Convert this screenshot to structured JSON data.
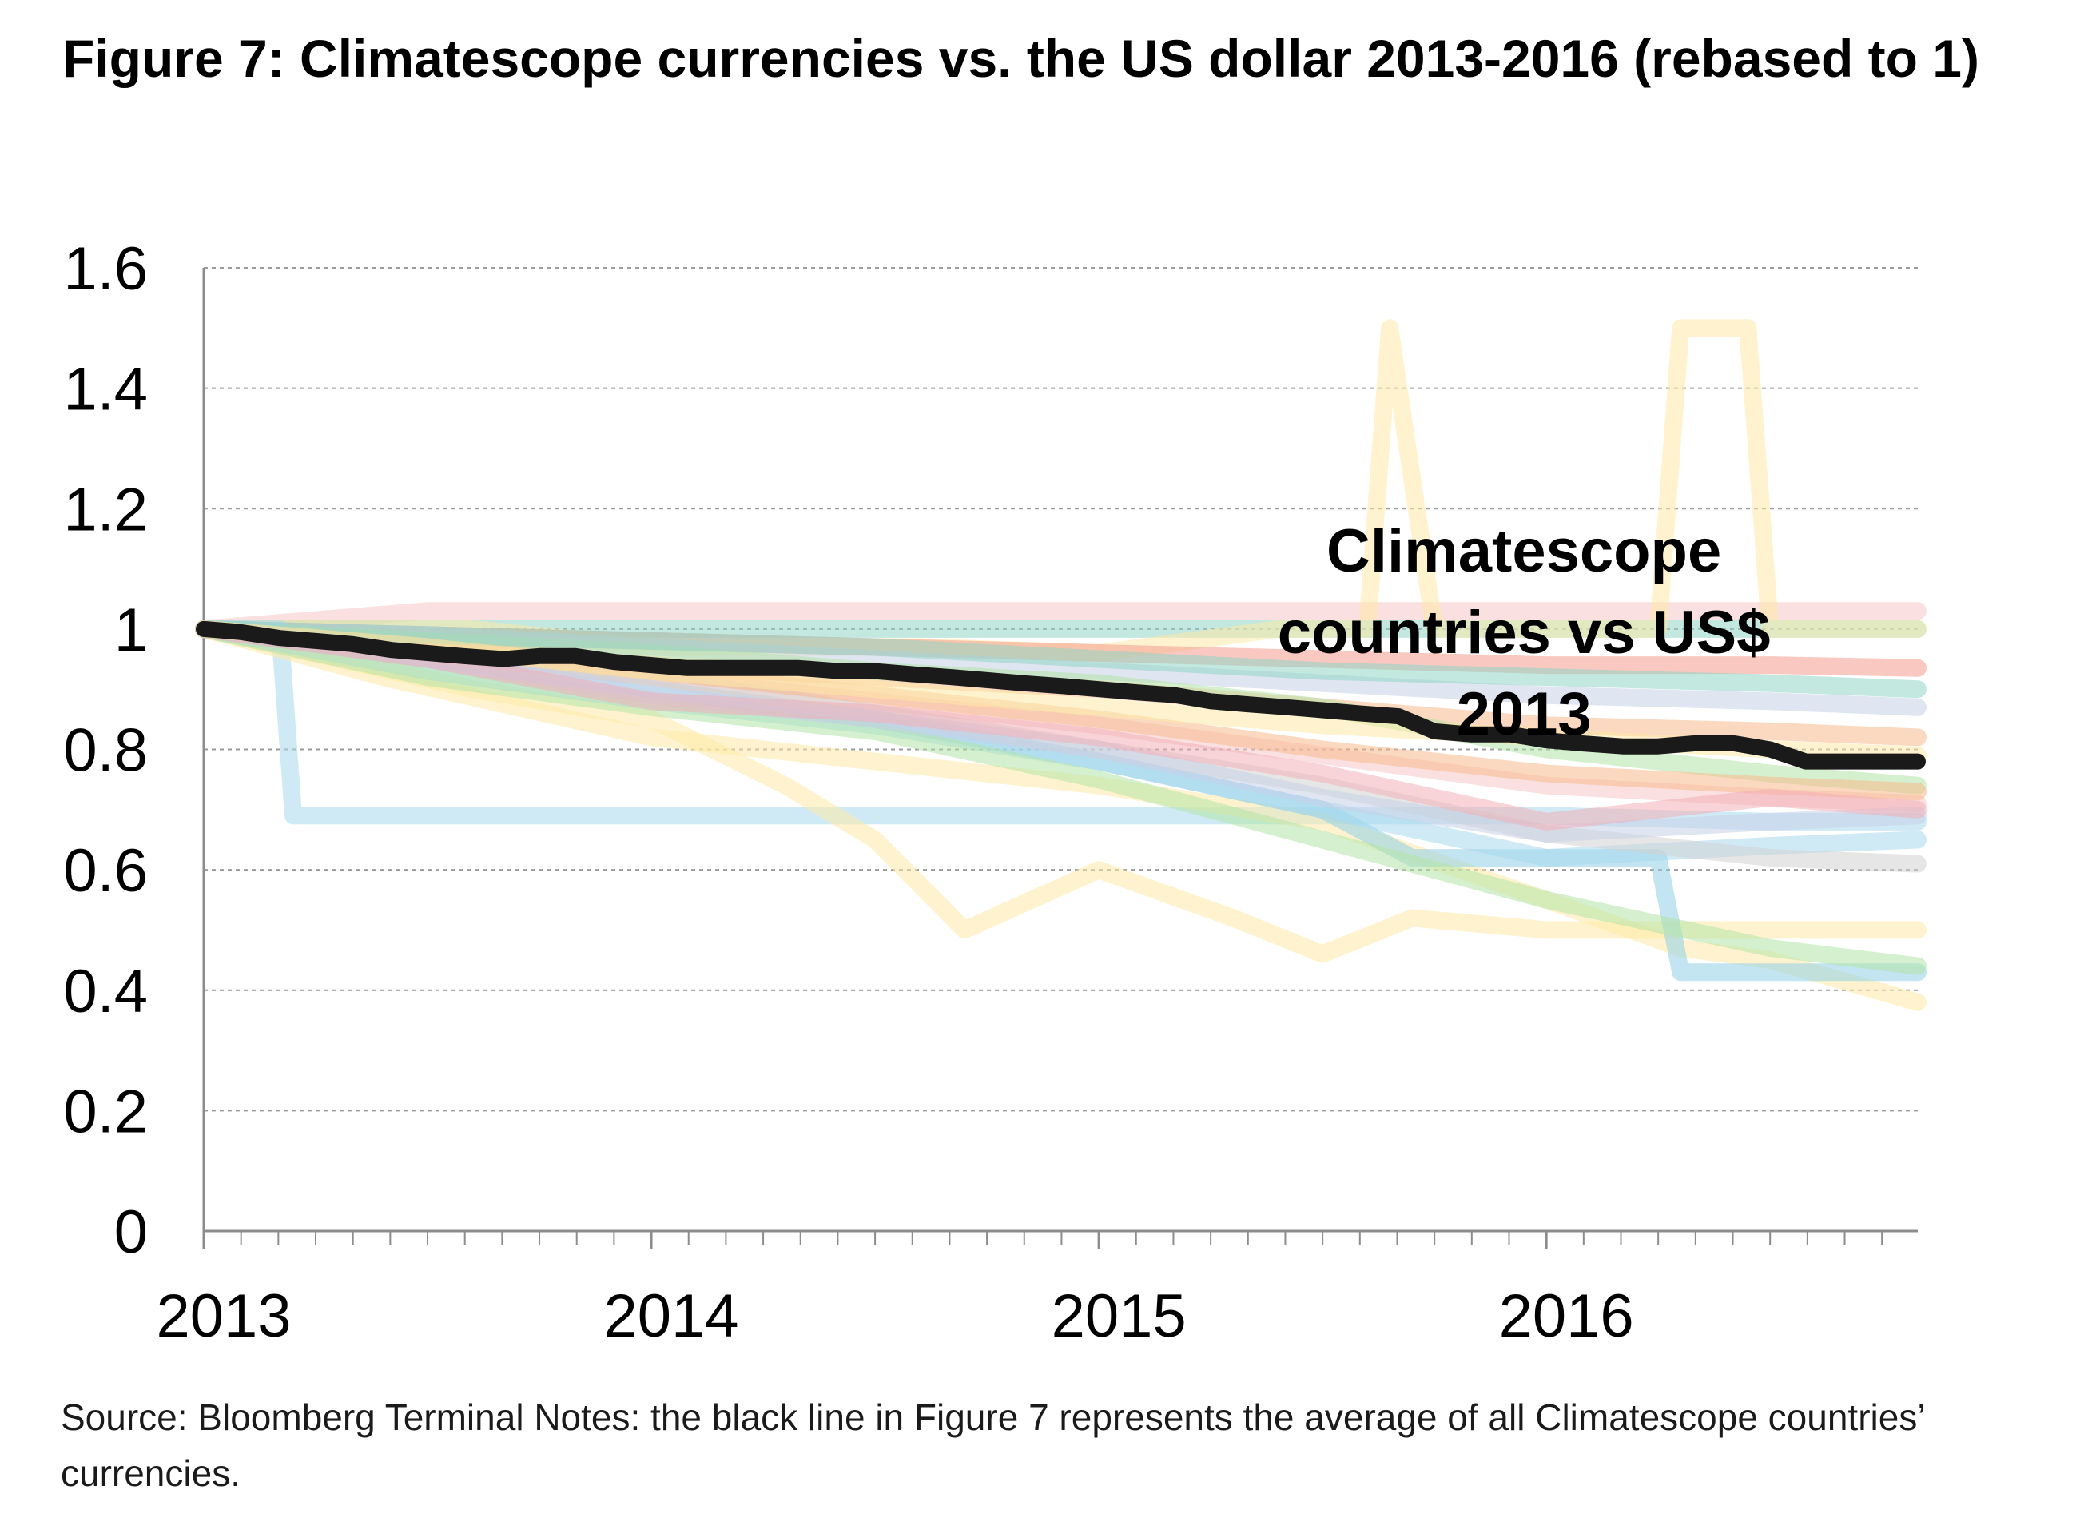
{
  "title": "Figure 7: Climatescope currencies vs. the US dollar 2013-2016 (rebased to 1)",
  "footnote": "Source: Bloomberg Terminal  Notes: the black line in Figure 7 represents the average of all Climatescope countries’ currencies.",
  "chart_data": {
    "type": "line",
    "title": "Figure 7: Climatescope currencies vs. the US dollar 2013-2016 (rebased to 1)",
    "xlabel": "",
    "ylabel": "",
    "xlim": [
      2013.0,
      2016.83
    ],
    "ylim": [
      0,
      1.6
    ],
    "y_ticks": [
      {
        "value": 0,
        "label": "0"
      },
      {
        "value": 0.2,
        "label": "0.2"
      },
      {
        "value": 0.4,
        "label": "0.4"
      },
      {
        "value": 0.6,
        "label": "0.6"
      },
      {
        "value": 0.8,
        "label": "0.8"
      },
      {
        "value": 1.0,
        "label": "1"
      },
      {
        "value": 1.2,
        "label": "1.2"
      },
      {
        "value": 1.4,
        "label": "1.4"
      },
      {
        "value": 1.6,
        "label": "1.6"
      }
    ],
    "x_ticks": [
      {
        "value": 2013,
        "label": "2013"
      },
      {
        "value": 2014,
        "label": "2014"
      },
      {
        "value": 2015,
        "label": "2015"
      },
      {
        "value": 2016,
        "label": "2016"
      }
    ],
    "grid": "horizontal dashed",
    "annotation": {
      "lines": [
        "Climatescope",
        "countries vs US$",
        "2013"
      ],
      "x": 2015.95,
      "y": 1.13
    },
    "average_series": {
      "color": "#1a1a1a",
      "x": [
        2013.0,
        2013.08,
        2013.17,
        2013.25,
        2013.33,
        2013.42,
        2013.5,
        2013.58,
        2013.67,
        2013.75,
        2013.83,
        2013.92,
        2014.0,
        2014.08,
        2014.17,
        2014.25,
        2014.33,
        2014.42,
        2014.5,
        2014.58,
        2014.67,
        2014.75,
        2014.83,
        2014.92,
        2015.0,
        2015.08,
        2015.17,
        2015.25,
        2015.33,
        2015.42,
        2015.5,
        2015.58,
        2015.67,
        2015.75,
        2015.83,
        2015.92,
        2016.0,
        2016.08,
        2016.17,
        2016.25,
        2016.33,
        2016.42,
        2016.5,
        2016.58,
        2016.67,
        2016.75,
        2016.83
      ],
      "y": [
        1.0,
        0.995,
        0.985,
        0.98,
        0.975,
        0.965,
        0.96,
        0.955,
        0.95,
        0.955,
        0.955,
        0.945,
        0.94,
        0.935,
        0.935,
        0.935,
        0.935,
        0.93,
        0.93,
        0.925,
        0.92,
        0.915,
        0.91,
        0.905,
        0.9,
        0.895,
        0.89,
        0.88,
        0.875,
        0.87,
        0.865,
        0.86,
        0.855,
        0.83,
        0.825,
        0.825,
        0.815,
        0.81,
        0.805,
        0.805,
        0.81,
        0.81,
        0.8,
        0.78,
        0.78,
        0.78,
        0.78
      ]
    },
    "series": [
      {
        "color": "#f6c6c6",
        "x": [
          2013.0,
          2013.5,
          2014.0,
          2014.5,
          2015.0,
          2015.5,
          2016.0,
          2016.5,
          2016.83
        ],
        "y": [
          1.0,
          1.03,
          1.03,
          1.03,
          1.03,
          1.03,
          1.03,
          1.03,
          1.03
        ]
      },
      {
        "color": "#8fd6c4",
        "x": [
          2013.0,
          2013.5,
          2014.0,
          2014.5,
          2015.0,
          2015.5,
          2016.0,
          2016.5,
          2016.83
        ],
        "y": [
          1.0,
          1.0,
          1.0,
          1.0,
          1.0,
          1.0,
          1.0,
          1.0,
          1.0
        ]
      },
      {
        "color": "#fde9a6",
        "x": [
          2013.0,
          2013.6,
          2014.0,
          2014.6,
          2015.0,
          2015.4,
          2015.6,
          2015.65,
          2015.75,
          2016.0,
          2016.25,
          2016.3,
          2016.45,
          2016.5,
          2016.83
        ],
        "y": [
          1.0,
          1.0,
          0.97,
          0.97,
          0.96,
          1.0,
          1.0,
          1.5,
          1.0,
          1.0,
          1.0,
          1.5,
          1.5,
          1.0,
          1.0
        ]
      },
      {
        "color": "#f29a8e",
        "x": [
          2013.0,
          2013.5,
          2014.0,
          2014.5,
          2015.0,
          2015.5,
          2016.0,
          2016.5,
          2016.83
        ],
        "y": [
          1.0,
          0.99,
          0.98,
          0.97,
          0.96,
          0.95,
          0.94,
          0.94,
          0.935
        ]
      },
      {
        "color": "#c7d0e8",
        "x": [
          2013.0,
          2013.5,
          2014.0,
          2014.5,
          2015.0,
          2015.5,
          2016.0,
          2016.5,
          2016.83
        ],
        "y": [
          1.0,
          0.99,
          0.97,
          0.95,
          0.93,
          0.91,
          0.89,
          0.88,
          0.87
        ]
      },
      {
        "color": "#f7b98c",
        "x": [
          2013.0,
          2013.5,
          2014.0,
          2014.5,
          2015.0,
          2015.5,
          2016.0,
          2016.5,
          2016.83
        ],
        "y": [
          1.0,
          0.97,
          0.94,
          0.92,
          0.9,
          0.87,
          0.84,
          0.83,
          0.82
        ]
      },
      {
        "color": "#b3e4a6",
        "x": [
          2013.0,
          2013.5,
          2014.0,
          2014.5,
          2015.0,
          2015.5,
          2016.0,
          2016.5,
          2016.83
        ],
        "y": [
          1.0,
          0.98,
          0.96,
          0.93,
          0.91,
          0.87,
          0.8,
          0.76,
          0.74
        ]
      },
      {
        "color": "#a7d8ec",
        "x": [
          2013.0,
          2013.17,
          2013.2,
          2014.0,
          2014.5,
          2015.0,
          2015.5,
          2016.0,
          2016.5,
          2016.83
        ],
        "y": [
          1.0,
          1.0,
          0.69,
          0.69,
          0.69,
          0.69,
          0.69,
          0.69,
          0.68,
          0.68
        ]
      },
      {
        "color": "#fde9a6",
        "x": [
          2013.0,
          2013.3,
          2013.6,
          2014.0,
          2014.3,
          2014.5,
          2014.7,
          2015.0,
          2015.3,
          2015.5,
          2015.7,
          2016.0,
          2016.3,
          2016.6,
          2016.83
        ],
        "y": [
          1.0,
          0.95,
          0.9,
          0.85,
          0.74,
          0.65,
          0.5,
          0.6,
          0.52,
          0.46,
          0.52,
          0.5,
          0.5,
          0.5,
          0.5
        ]
      },
      {
        "color": "#fde9a6",
        "x": [
          2013.0,
          2013.4,
          2014.0,
          2014.5,
          2015.0,
          2015.5,
          2016.0,
          2016.3,
          2016.5,
          2016.83
        ],
        "y": [
          1.0,
          0.92,
          0.82,
          0.78,
          0.74,
          0.68,
          0.55,
          0.47,
          0.45,
          0.38
        ]
      },
      {
        "color": "#8fd0e6",
        "x": [
          2013.0,
          2013.5,
          2014.0,
          2014.5,
          2015.0,
          2015.5,
          2015.7,
          2016.0,
          2016.25,
          2016.3,
          2016.83
        ],
        "y": [
          1.0,
          0.95,
          0.9,
          0.85,
          0.78,
          0.7,
          0.62,
          0.62,
          0.62,
          0.43,
          0.43
        ]
      },
      {
        "color": "#a7d8ec",
        "x": [
          2013.0,
          2013.5,
          2014.0,
          2014.5,
          2015.0,
          2015.5,
          2016.0,
          2016.5,
          2016.83
        ],
        "y": [
          1.0,
          0.93,
          0.88,
          0.84,
          0.78,
          0.7,
          0.62,
          0.64,
          0.65
        ]
      },
      {
        "color": "#b3e4a6",
        "x": [
          2013.0,
          2013.5,
          2014.0,
          2014.5,
          2015.0,
          2015.5,
          2016.0,
          2016.5,
          2016.83
        ],
        "y": [
          1.0,
          0.92,
          0.87,
          0.83,
          0.75,
          0.65,
          0.55,
          0.47,
          0.44
        ]
      },
      {
        "color": "#f6c6c6",
        "x": [
          2013.0,
          2013.5,
          2014.0,
          2014.5,
          2015.0,
          2015.5,
          2016.0,
          2016.5,
          2016.83
        ],
        "y": [
          1.0,
          0.96,
          0.92,
          0.88,
          0.84,
          0.79,
          0.74,
          0.72,
          0.71
        ]
      },
      {
        "color": "#d2d2d2",
        "x": [
          2013.0,
          2013.5,
          2014.0,
          2014.5,
          2015.0,
          2015.5,
          2016.0,
          2016.5,
          2016.83
        ],
        "y": [
          1.0,
          0.96,
          0.92,
          0.86,
          0.8,
          0.74,
          0.66,
          0.62,
          0.61
        ]
      },
      {
        "color": "#f7b98c",
        "x": [
          2013.0,
          2013.5,
          2014.0,
          2014.5,
          2015.0,
          2015.5,
          2016.0,
          2016.5,
          2016.83
        ],
        "y": [
          1.0,
          0.97,
          0.93,
          0.89,
          0.85,
          0.8,
          0.76,
          0.74,
          0.73
        ]
      },
      {
        "color": "#c7d0e8",
        "x": [
          2013.0,
          2013.5,
          2014.0,
          2014.5,
          2015.0,
          2015.5,
          2016.0,
          2016.5,
          2016.83
        ],
        "y": [
          1.0,
          0.95,
          0.89,
          0.85,
          0.8,
          0.72,
          0.66,
          0.68,
          0.69
        ]
      },
      {
        "color": "#8fd6c4",
        "x": [
          2013.0,
          2013.5,
          2014.0,
          2014.5,
          2015.0,
          2015.5,
          2016.0,
          2016.5,
          2016.83
        ],
        "y": [
          1.0,
          0.99,
          0.98,
          0.97,
          0.95,
          0.93,
          0.92,
          0.91,
          0.9
        ]
      },
      {
        "color": "#f3aeb6",
        "x": [
          2013.0,
          2013.5,
          2014.0,
          2014.5,
          2015.0,
          2015.5,
          2016.0,
          2016.5,
          2016.83
        ],
        "y": [
          1.0,
          0.95,
          0.88,
          0.86,
          0.82,
          0.76,
          0.68,
          0.72,
          0.7
        ]
      },
      {
        "color": "#fde9a6",
        "x": [
          2013.0,
          2013.5,
          2014.0,
          2014.5,
          2015.0,
          2015.5,
          2016.0,
          2016.5,
          2016.83
        ],
        "y": [
          1.0,
          0.97,
          0.93,
          0.9,
          0.87,
          0.84,
          0.82,
          0.8,
          0.79
        ]
      }
    ]
  }
}
